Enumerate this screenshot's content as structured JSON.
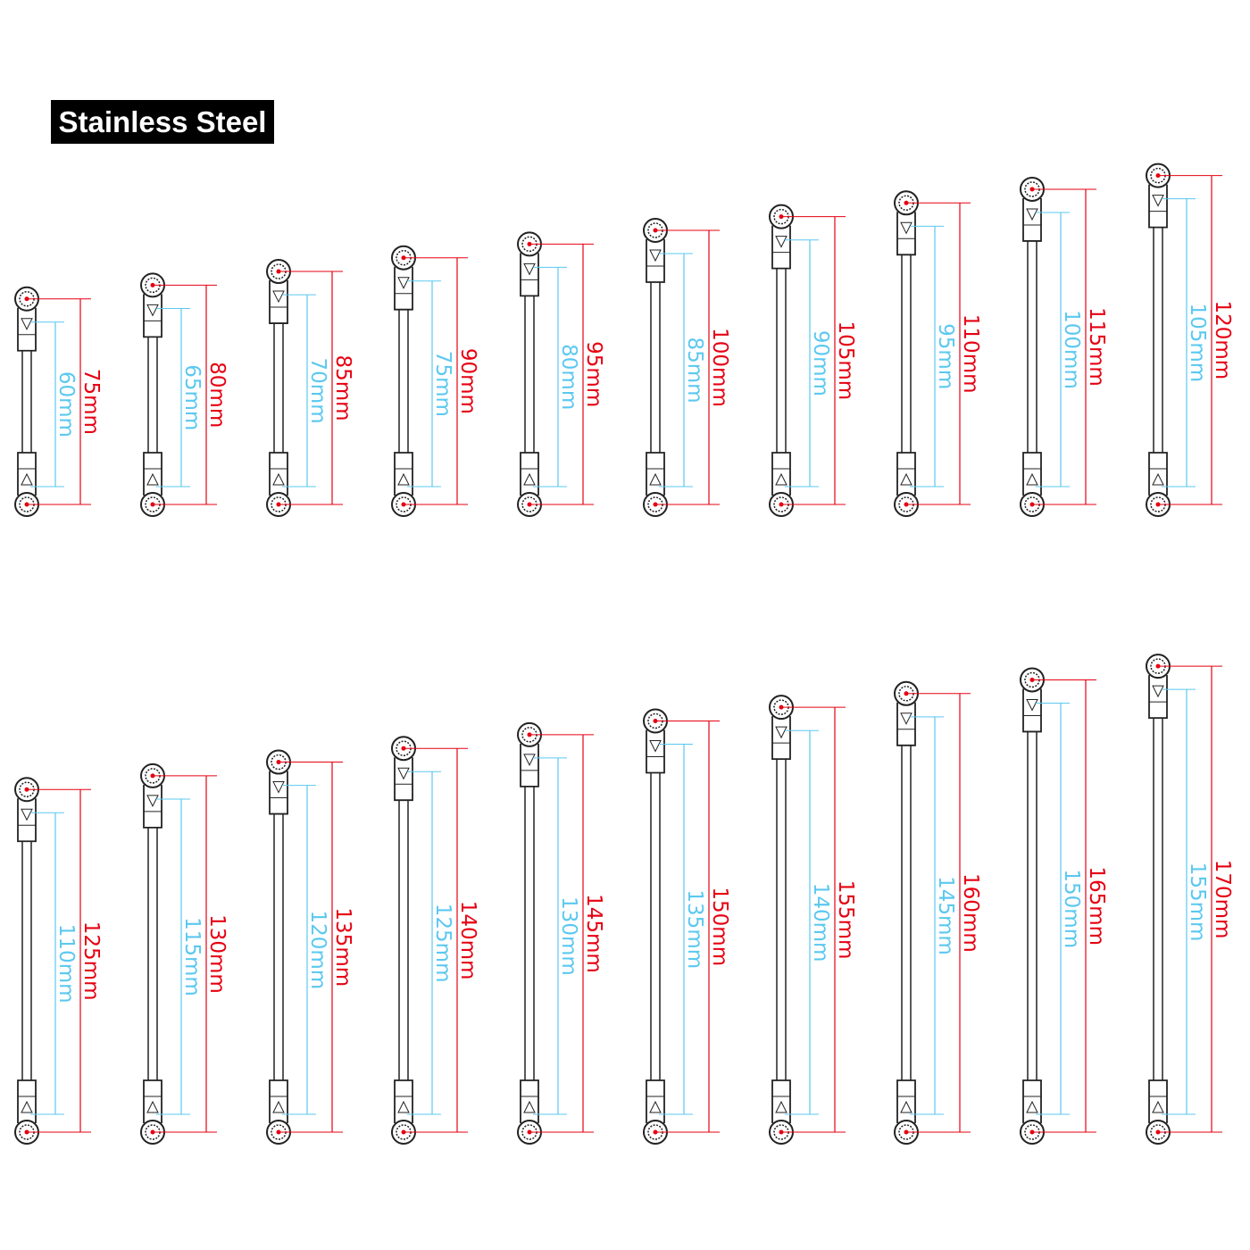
{
  "title": "Stainless Steel",
  "colors": {
    "overall": "#e60012",
    "inner": "#5bc8f0",
    "part": "#222222"
  },
  "unit": "mm",
  "rows": [
    {
      "links": [
        {
          "overall": "75mm",
          "inner": "60mm"
        },
        {
          "overall": "80mm",
          "inner": "65mm"
        },
        {
          "overall": "85mm",
          "inner": "70mm"
        },
        {
          "overall": "90mm",
          "inner": "75mm"
        },
        {
          "overall": "95mm",
          "inner": "80mm"
        },
        {
          "overall": "100mm",
          "inner": "85mm"
        },
        {
          "overall": "105mm",
          "inner": "90mm"
        },
        {
          "overall": "110mm",
          "inner": "95mm"
        },
        {
          "overall": "115mm",
          "inner": "100mm"
        },
        {
          "overall": "120mm",
          "inner": "105mm"
        }
      ]
    },
    {
      "links": [
        {
          "overall": "125mm",
          "inner": "110mm"
        },
        {
          "overall": "130mm",
          "inner": "115mm"
        },
        {
          "overall": "135mm",
          "inner": "120mm"
        },
        {
          "overall": "140mm",
          "inner": "125mm"
        },
        {
          "overall": "145mm",
          "inner": "130mm"
        },
        {
          "overall": "150mm",
          "inner": "135mm"
        },
        {
          "overall": "155mm",
          "inner": "140mm"
        },
        {
          "overall": "160mm",
          "inner": "145mm"
        },
        {
          "overall": "165mm",
          "inner": "150mm"
        },
        {
          "overall": "170mm",
          "inner": "155mm"
        }
      ]
    }
  ]
}
